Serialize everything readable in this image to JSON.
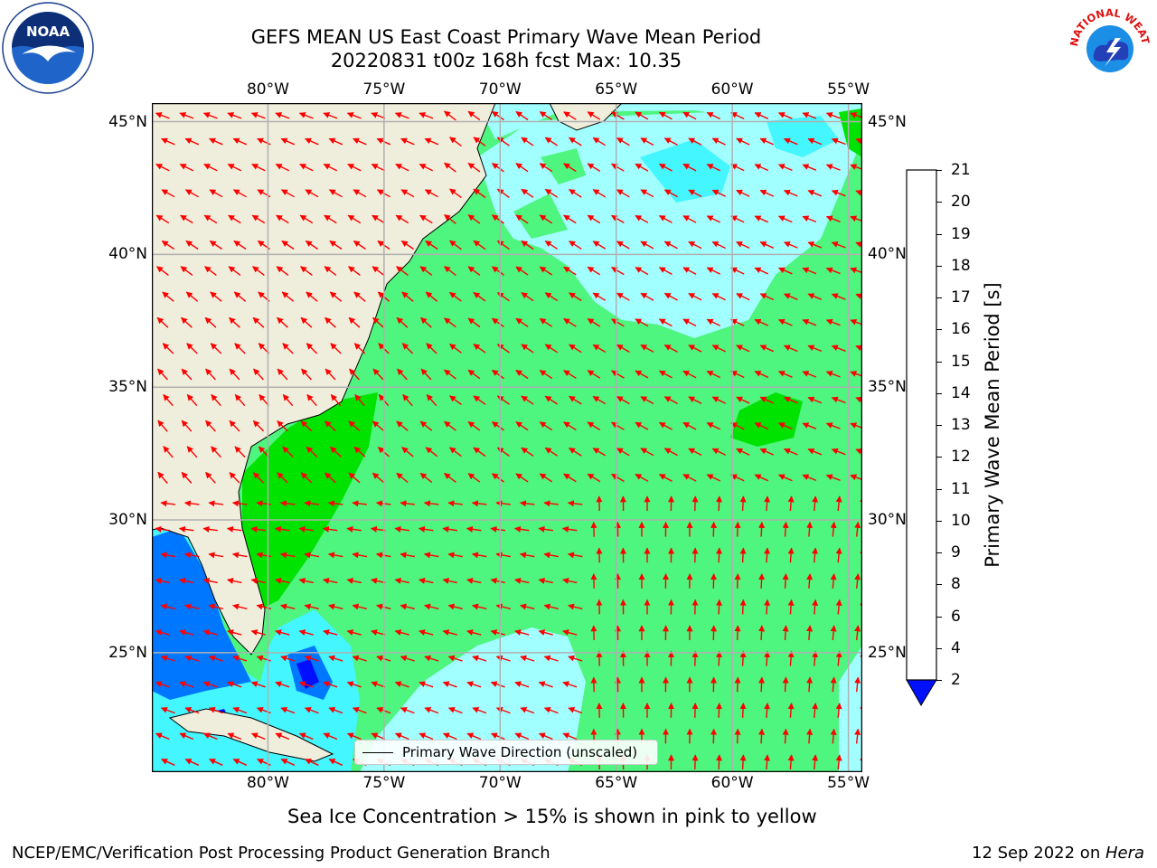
{
  "title": "GEFS MEAN US East Coast Primary Wave Mean Period",
  "subtitle": "20220831 t00z 168h fcst   Max: 10.35",
  "map": {
    "lon_range": [
      -85,
      -54.4
    ],
    "lat_range": [
      20.5,
      45.7
    ],
    "lon_ticks": [
      {
        "lon": -80,
        "label": "80°W"
      },
      {
        "lon": -75,
        "label": "75°W"
      },
      {
        "lon": -70,
        "label": "70°W"
      },
      {
        "lon": -65,
        "label": "65°W"
      },
      {
        "lon": -60,
        "label": "60°W"
      },
      {
        "lon": -55,
        "label": "55°W"
      }
    ],
    "lat_ticks": [
      {
        "lat": 45,
        "label": "45°N"
      },
      {
        "lat": 40,
        "label": "40°N"
      },
      {
        "lat": 35,
        "label": "35°N"
      },
      {
        "lat": 30,
        "label": "30°N"
      },
      {
        "lat": 25,
        "label": "25°N"
      }
    ],
    "land_color": "#efeedc",
    "arrow_color": "#ff0000",
    "legend_label": "Primary Wave Direction (unscaled)"
  },
  "colorbar": {
    "label": "Primary Wave Mean Period [s]",
    "ticks": [
      "2",
      "4",
      "6",
      "8",
      "9",
      "10",
      "11",
      "12",
      "13",
      "14",
      "15",
      "16",
      "17",
      "18",
      "19",
      "20",
      "21"
    ],
    "colors": [
      "#0077ff",
      "#00ddff",
      "#44f6ff",
      "#a2ffff",
      "#4ef57e",
      "#00e200",
      "#66ef00",
      "#c7f500",
      "#e3fb00",
      "#ffff00",
      "#ffe600",
      "#ffbe00",
      "#ff9600",
      "#ff6400",
      "#ff3200",
      "#ff0000"
    ],
    "under_color": "#0010ff"
  },
  "logos": {
    "left": {
      "text": "NOAA",
      "icon": "noaa-logo-icon"
    },
    "right": {
      "text": "NATIONAL WEATHER SERVICE",
      "icon": "nws-logo-icon"
    }
  },
  "note": "Sea Ice Concentration > 15% is shown in pink to yellow",
  "footer": {
    "left": "NCEP/EMC/Verification Post Processing Product Generation Branch",
    "right_date": "12 Sep 2022 on ",
    "right_host": "Hera"
  }
}
